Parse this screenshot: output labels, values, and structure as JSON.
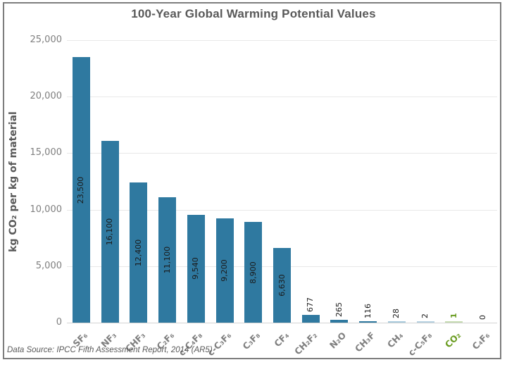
{
  "frame": {
    "title": "100-Year Global Warming Potential Values",
    "source_note": "Data Source: IPCC Fifth Assessment Report, 2014 (AR5)"
  },
  "colors": {
    "bar_primary": "#2F79A0",
    "bar_light_blue": "#A9CBDD",
    "bar_lighter_blue": "#B7D2E2",
    "bar_light_green": "#C7DCB2",
    "co2_green_text": "#699B1F",
    "axis_text_gray": "#7F7F7F",
    "title_gray": "#595959",
    "value_label_black": "#1A1A1A",
    "gridline": "#E8E8E8"
  },
  "chart_data": {
    "type": "bar",
    "title": "100-Year Global Warming Potential Values",
    "xlabel": "",
    "ylabel": "kg CO₂ per kg of material",
    "ylim": [
      0,
      25000
    ],
    "ytick_interval": 5000,
    "ytick_labels": [
      "25,000",
      "20,000",
      "15,000",
      "10,000",
      "5,000",
      "0"
    ],
    "grid": "horizontal",
    "legend_position": "none",
    "source": "Data Source: IPCC Fifth Assessment Report, 2014 (AR5)",
    "categories": [
      "SF₆",
      "NF₃",
      "CHF₃",
      "C₂F₆",
      "c-C₄F₈",
      "c-C₃F₆",
      "C₃F₈",
      "CF₄",
      "CH₂F₂",
      "N₂O",
      "CH₃F",
      "CH₄",
      "c-C₅F₈",
      "CO₂",
      "C₄F₆"
    ],
    "values": [
      23500,
      16100,
      12400,
      11100,
      9540,
      9200,
      8900,
      6630,
      677,
      265,
      116,
      28,
      2,
      1,
      0
    ],
    "bars": [
      {
        "label": "SF₆",
        "value": 23500,
        "value_label": "23,500",
        "bar_color": "#2F79A0",
        "label_color": "#7F7F7F",
        "value_label_color": "#1A1A1A",
        "label_bold": false
      },
      {
        "label": "NF₃",
        "value": 16100,
        "value_label": "16,100",
        "bar_color": "#2F79A0",
        "label_color": "#7F7F7F",
        "value_label_color": "#1A1A1A",
        "label_bold": false
      },
      {
        "label": "CHF₃",
        "value": 12400,
        "value_label": "12,400",
        "bar_color": "#2F79A0",
        "label_color": "#7F7F7F",
        "value_label_color": "#1A1A1A",
        "label_bold": false
      },
      {
        "label": "C₂F₆",
        "value": 11100,
        "value_label": "11,100",
        "bar_color": "#2F79A0",
        "label_color": "#7F7F7F",
        "value_label_color": "#1A1A1A",
        "label_bold": false
      },
      {
        "label": "c-C₄F₈",
        "value": 9540,
        "value_label": "9,540",
        "bar_color": "#2F79A0",
        "label_color": "#7F7F7F",
        "value_label_color": "#1A1A1A",
        "label_bold": false
      },
      {
        "label": "c-C₃F₆",
        "value": 9200,
        "value_label": "9,200",
        "bar_color": "#2F79A0",
        "label_color": "#7F7F7F",
        "value_label_color": "#1A1A1A",
        "label_bold": false
      },
      {
        "label": "C₃F₈",
        "value": 8900,
        "value_label": "8,900",
        "bar_color": "#2F79A0",
        "label_color": "#7F7F7F",
        "value_label_color": "#1A1A1A",
        "label_bold": false
      },
      {
        "label": "CF₄",
        "value": 6630,
        "value_label": "6,630",
        "bar_color": "#2F79A0",
        "label_color": "#7F7F7F",
        "value_label_color": "#1A1A1A",
        "label_bold": false
      },
      {
        "label": "CH₂F₂",
        "value": 677,
        "value_label": "677",
        "bar_color": "#2F79A0",
        "label_color": "#7F7F7F",
        "value_label_color": "#1A1A1A",
        "label_bold": false
      },
      {
        "label": "N₂O",
        "value": 265,
        "value_label": "265",
        "bar_color": "#2F79A0",
        "label_color": "#7F7F7F",
        "value_label_color": "#1A1A1A",
        "label_bold": false
      },
      {
        "label": "CH₃F",
        "value": 116,
        "value_label": "116",
        "bar_color": "#2F79A0",
        "label_color": "#7F7F7F",
        "value_label_color": "#1A1A1A",
        "label_bold": false
      },
      {
        "label": "CH₄",
        "value": 28,
        "value_label": "28",
        "bar_color": "#A9CBDD",
        "label_color": "#7F7F7F",
        "value_label_color": "#1A1A1A",
        "label_bold": false
      },
      {
        "label": "c-C₅F₈",
        "value": 2,
        "value_label": "2",
        "bar_color": "#B7D2E2",
        "label_color": "#7F7F7F",
        "value_label_color": "#1A1A1A",
        "label_bold": false
      },
      {
        "label": "CO₂",
        "value": 1,
        "value_label": "1",
        "bar_color": "#C7DCB2",
        "label_color": "#699B1F",
        "value_label_color": "#699B1F",
        "label_bold": true
      },
      {
        "label": "C₄F₆",
        "value": 0,
        "value_label": "0",
        "bar_color": null,
        "label_color": "#7F7F7F",
        "value_label_color": "#1A1A1A",
        "label_bold": false
      }
    ]
  }
}
